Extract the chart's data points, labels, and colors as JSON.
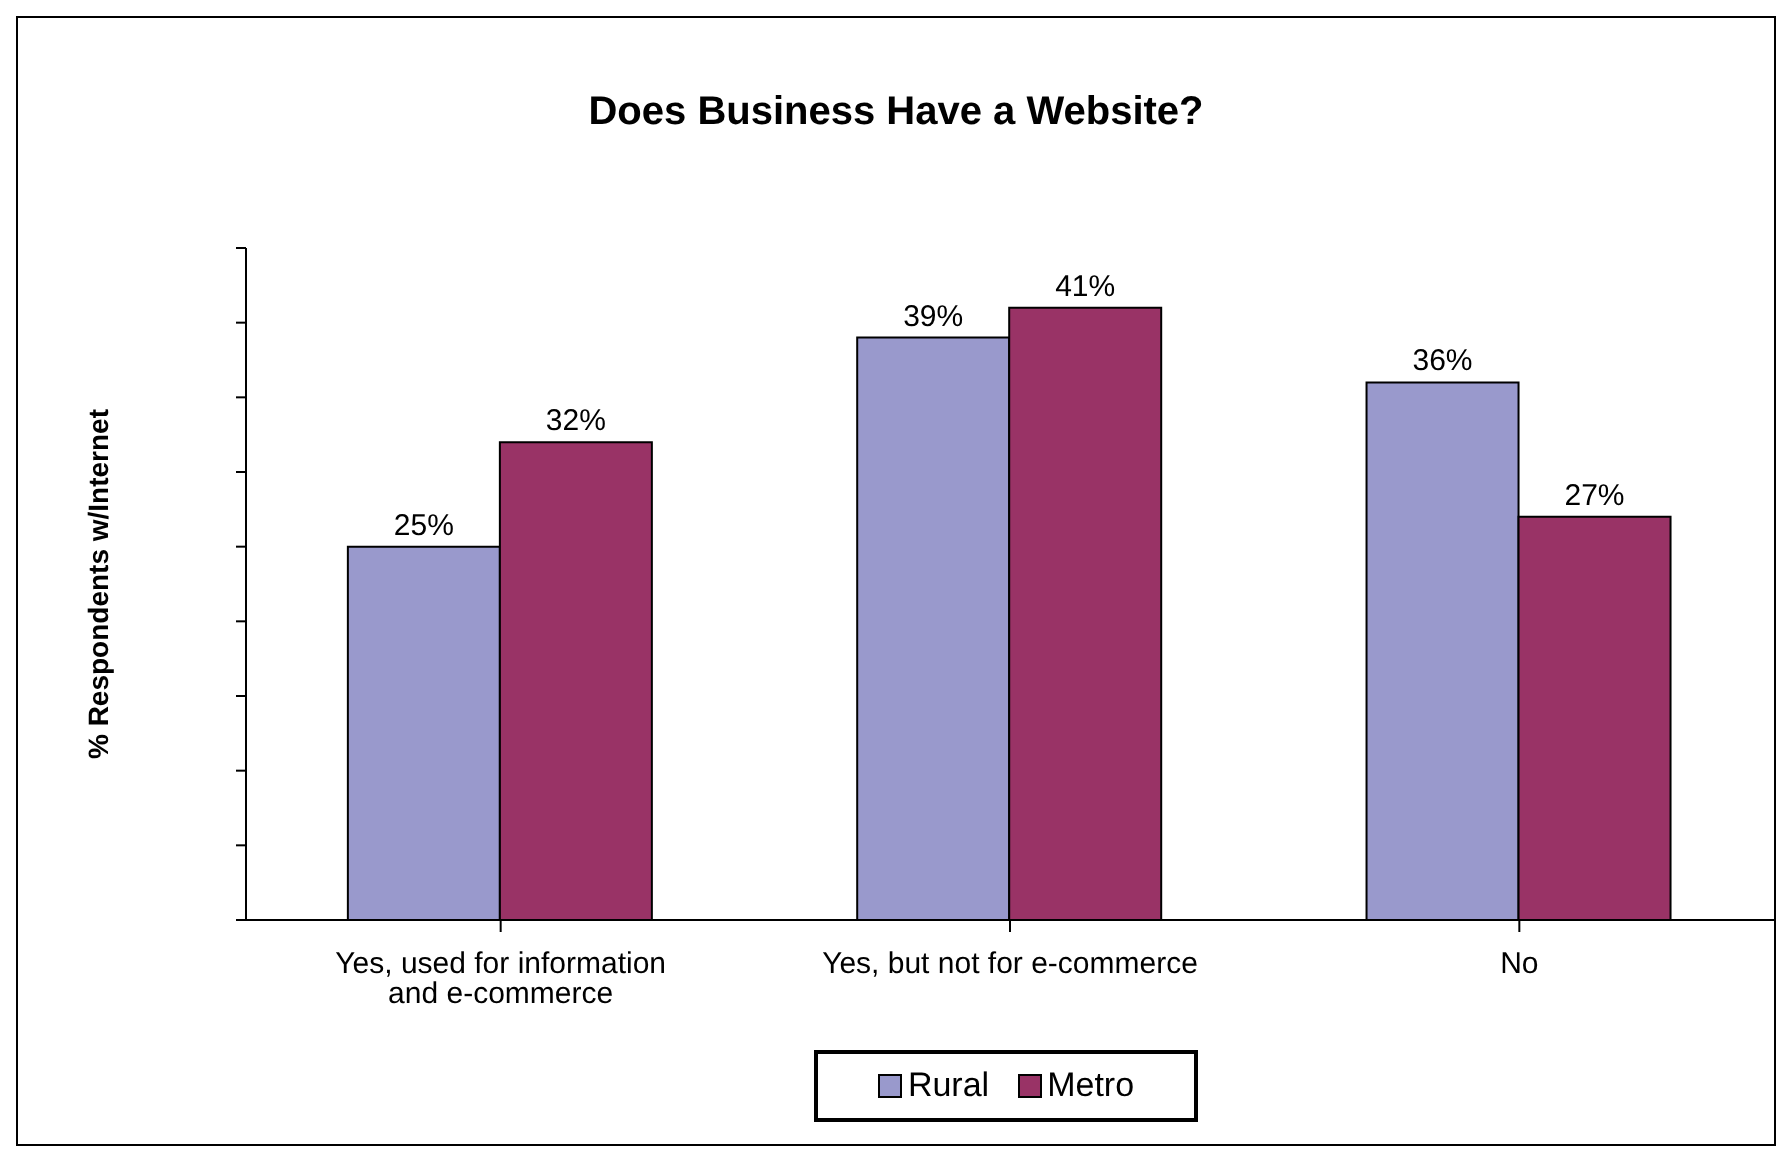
{
  "chart_data": {
    "type": "bar",
    "title": "Does Business Have a Website?",
    "ylabel": "% Respondents w/Internet",
    "categories": [
      "Yes, used for information and e-commerce",
      "Yes, but not for e-commerce",
      "No"
    ],
    "series": [
      {
        "name": "Rural",
        "color": "#9999cc",
        "values": [
          25,
          39,
          36
        ],
        "value_labels": [
          "25%",
          "39%",
          "36%"
        ]
      },
      {
        "name": "Metro",
        "color": "#993366",
        "values": [
          32,
          41,
          27
        ],
        "value_labels": [
          "32%",
          "41%",
          "27%"
        ]
      }
    ],
    "tick_labels": "x",
    "legend": "bottom"
  }
}
